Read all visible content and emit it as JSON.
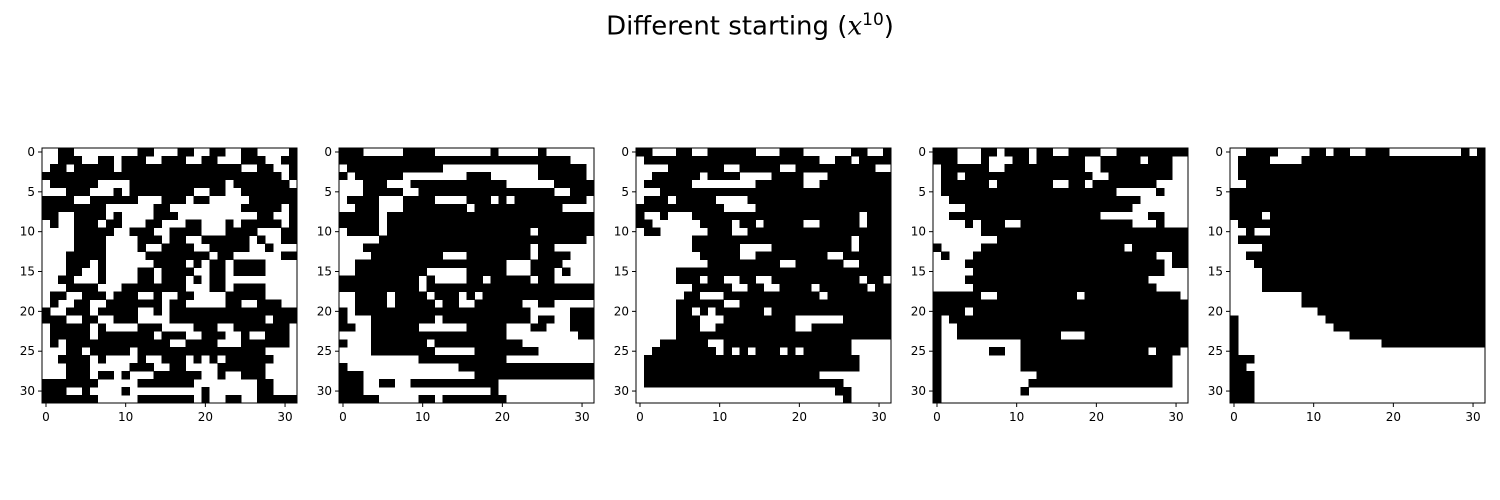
{
  "title": {
    "prefix": "Different starting (",
    "var": "x",
    "superscript": "10",
    "suffix": ")"
  },
  "chart_data": {
    "type": "heatmap",
    "colormap": "gray_r",
    "value_range": [
      0,
      1
    ],
    "grid_size": 32,
    "xticks": [
      0,
      10,
      20,
      30
    ],
    "yticks": [
      0,
      5,
      10,
      15,
      20,
      25,
      30
    ],
    "xlim": [
      -0.5,
      31.5
    ],
    "ylim": [
      31.5,
      -0.5
    ],
    "panels": [
      {
        "rows": [
          "00110000000011000110011001100001",
          "00111001101110011100110001110011",
          "01101111101111111111111110011001",
          "11111111111111111111111111111101",
          "01111110000111111111111011111110",
          "00011100010111111110011001111111",
          "11110011111100011101100000111111",
          "11111111000000110000000001111101",
          "11001111010000111000000000011001",
          "01001110110001100011000101111101",
          "00001111100111001111000111100011",
          "00001111000011101100111111010011",
          "00001111000010011110011111001000",
          "00011111000001111111101100000011",
          "00011101000000111101011011110000",
          "00011001000011011110011011110000",
          "00110001000011011101011000000000",
          "00011110001111111100011011110000",
          "01100111011100100110000111110000",
          "01001100111111101100000110011100",
          "10011101111100101111111111111111",
          "11100110011100001111111111110111",
          "01111101000011100001110011111110",
          "01111101111111011100111001001110",
          "01011111111111110011110001111110",
          "00011011111011111111111111110000",
          "00111101000010011101010111111000",
          "00011100000111001100001111110000",
          "00011101101000111111001001110000",
          "11111110000011111110000000011000",
          "11100100001000000000100000011000",
          "11111110000011111110100110011111"
        ]
      },
      {
        "rows": [
          "11100000111100000001000001000000",
          "11111111111111111111111111111000",
          "01111111111110000000000001111110",
          "10111111000000001110000001111110",
          "00011100011111111111100000011111",
          "00011111001111111111111111100111",
          "01111000111100001110101111111110",
          "00111000111111110111111111110000",
          "11111011111111111111111111111111",
          "11111011111111111111111111111111",
          "01111011111111111111111101111111",
          "00000111111111111111111111111110",
          "00011111111111111111111101100000",
          "00001111111110001111111101111000",
          "00111111111111111111100011110000",
          "00111111111000001111100011101000",
          "11111111110100001101111101100000",
          "11111111110111111111111111111111",
          "00111101111011101011111111111111",
          "00111101111101100111111001100000",
          "10111111111111111111111100000111",
          "10001111111101111111111101100111",
          "11001111110000001111100011000111",
          "00001111111111111111100000000011",
          "10001111111011111111111000000000",
          "00001111111100000111111110000000",
          "00000000001111111111100000000000",
          "10000000000000011111111111111111",
          "11100000000000000111111111111111",
          "11100110011111111111000000000000",
          "11100000000000000001000000000000",
          "11111000001101111111100000000000"
        ]
      },
      {
        "rows": [
          "11000110011111100011100000011001",
          "01111111111111111111111001101111",
          "00001111111001111100111111111100",
          "00111111011110000111100011111111",
          "01111110000000011111100111111111",
          "00011111111111111111111111111111",
          "01110111110000111111111111111111",
          "11111111111000011111111111111111",
          "10010001111111111111111111110111",
          "11000000111101101111100111110111",
          "01100000011100111111111111111111",
          "00000001111111111111111111101111",
          "00000001111110000111111111101111",
          "00000000111110011111111100111111",
          "00000000011111111100111111001111",
          "00000111111111111111111111111111",
          "00000111011001100111111111110110",
          "00000001111100110011110111111011",
          "00000011000111111111111011111111",
          "00000111111001111111111111111111",
          "00000110101111110111111111111111",
          "00000111000111111111000000111111",
          "00000111001111111111001111111111",
          "00000111111111111111111111111111",
          "00011111100111111111111111100000",
          "00111111110101011101011111100000",
          "01111111111111111111111111110000",
          "01111111111111111111111111110000",
          "01111111111111111111111000000000",
          "01111111111111111111111111000000",
          "00000000000000000000000001100000",
          "00000000000000000000000000100000"
        ]
      },
      {
        "rows": [
          "11100011011101100111100111111111",
          "11100010001101111110011111011100",
          "01111110011111111110011111111100",
          "01101111111111111111001111111100",
          "01111110111111100110111111110000",
          "01111111111111111111111000001000",
          "00111111111111111111111111000000",
          "00001111111111111111111110000000",
          "00111111111111111111100000011000",
          "00001011100111111111111110001000",
          "00000011111111111111111111111111",
          "00000000111111111111111111111111",
          "10000011111111111111111101111111",
          "01000111111111111111111111110011",
          "00001111111111111111111111111011",
          "00000111111111111111111111111000",
          "00001111111111111111111111100000",
          "00000111111111111111111111110000",
          "11111100111111111101111111111110",
          "11111111111111111111111111111111",
          "11110111111111111111111111111111",
          "10111111111111111111111111111111",
          "10011111111111111111111111111111",
          "10011111111111110001111111111111",
          "10000000000111111111111111111111",
          "10000001100111111111111111101110",
          "10000000000111111111111111111100",
          "10000000000111111111111111111100",
          "10000000000001111111111111111100",
          "10000000000011111111111111111100",
          "10000000000100000000000000000000",
          "10000000000000000000000000000000"
        ]
      },
      {
        "rows": [
          "00111100001101100111000000000101",
          "01111000011111111111111111111111",
          "01111111111111111111111111111111",
          "01111111111111111111111111111111",
          "00111111111111111111111111111111",
          "11111111111111111111111111111111",
          "11111111111111111111111111111111",
          "11111111111111111111111111111111",
          "11110111111111111111111111111111",
          "01111111111111111111111111111111",
          "00100111111111111111111111111111",
          "01111111111111111111111111111111",
          "00001111111111111111111111111111",
          "00111111111111111111111111111111",
          "00011111111111111111111111111111",
          "00001111111111111111111111111111",
          "00001111111111111111111111111111",
          "00001111111111111111111111111111",
          "00000000011111111111111111111111",
          "00000000011111111111111111111111",
          "00000000000111111111111111111111",
          "10000000000011111111111111111111",
          "10000000000001111111111111111111",
          "10000000000000011111111111111111",
          "10000000000000000001111111111111",
          "10000000000000000000000000000000",
          "11100000000000000000000000000000",
          "11000000000000000000000000000000",
          "11100000000000000000000000000000",
          "11100000000000000000000000000000",
          "11100000000000000000000000000000",
          "11100000000000000000000000000000"
        ]
      }
    ]
  }
}
